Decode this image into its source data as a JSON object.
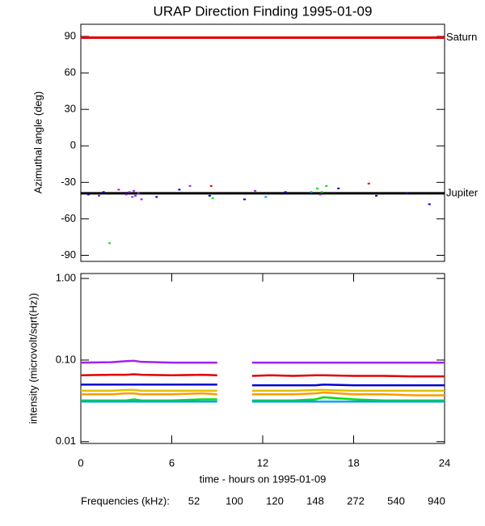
{
  "chart_data": [
    {
      "type": "scatter",
      "title": "URAP Direction Finding  1995-01-09",
      "ylabel": "Azimuthal angle (deg)",
      "xlim": [
        0,
        24
      ],
      "ylim": [
        -95,
        100
      ],
      "yticks": [
        -90,
        -60,
        -30,
        0,
        30,
        60,
        90
      ],
      "reference_lines": [
        {
          "label": "Saturn",
          "value": 89,
          "color": "#e00000"
        },
        {
          "label": "Jupiter",
          "value": -39,
          "color": "#000000"
        }
      ],
      "series": [
        {
          "color": "#a020f0",
          "x": [
            3.0,
            3.2,
            3.4,
            3.5,
            3.6,
            3.8,
            4.0,
            2.5,
            1.2,
            7.2,
            11.5,
            15.8
          ],
          "values": [
            -40,
            -38,
            -42,
            -37,
            -41,
            -39,
            -44,
            -36,
            -41,
            -33,
            -37,
            -40
          ]
        },
        {
          "color": "#0000d0",
          "x": [
            0.5,
            1.5,
            5.0,
            6.5,
            8.5,
            10.8,
            13.5,
            17.0,
            19.5,
            21.5,
            23.0
          ],
          "values": [
            -40,
            -38,
            -42,
            -36,
            -41,
            -44,
            -38,
            -35,
            -41,
            -39,
            -48
          ]
        },
        {
          "color": "#00e000",
          "x": [
            1.9,
            8.7,
            15.6,
            15.9,
            16.2
          ],
          "values": [
            -80,
            -43,
            -35,
            -38,
            -33
          ]
        },
        {
          "color": "#e00000",
          "x": [
            8.6,
            19.0
          ],
          "values": [
            -33,
            -31
          ]
        },
        {
          "color": "#00a0ff",
          "x": [
            15.2,
            12.2
          ],
          "values": [
            -38,
            -42
          ]
        }
      ]
    },
    {
      "type": "line",
      "ylabel": "intensity (microvolt/sqrt(Hz))",
      "xlabel": "time - hours on 1995-01-09",
      "log_scale": true,
      "xlim": [
        0,
        24
      ],
      "xticks": [
        0,
        6,
        12,
        18,
        24
      ],
      "ylim": [
        0.0095,
        1.15
      ],
      "yticks": [
        {
          "value": 0.01,
          "label": "0.01"
        },
        {
          "value": 0.1,
          "label": "0.10"
        },
        {
          "value": 1,
          "label": "1.00"
        }
      ],
      "legend_title": "Frequencies (kHz):",
      "x": [
        0,
        2,
        3,
        3.5,
        4,
        6,
        8,
        9,
        10,
        11.3,
        12.5,
        14,
        15.5,
        16,
        18,
        20,
        22,
        24
      ],
      "series": [
        {
          "name": "52",
          "color": "#e00000",
          "values": [
            0.065,
            0.066,
            0.066,
            0.067,
            0.066,
            0.065,
            0.066,
            0.065,
            null,
            0.064,
            0.065,
            0.064,
            0.065,
            0.065,
            0.064,
            0.064,
            0.063,
            0.063
          ]
        },
        {
          "name": "100",
          "color": "#ff9900",
          "values": [
            0.038,
            0.038,
            0.039,
            0.039,
            0.038,
            0.038,
            0.039,
            0.038,
            null,
            0.038,
            0.038,
            0.038,
            0.039,
            0.04,
            0.038,
            0.038,
            0.037,
            0.037
          ]
        },
        {
          "name": "120",
          "color": "#e0c000",
          "values": [
            0.042,
            0.042,
            0.043,
            0.043,
            0.042,
            0.042,
            0.042,
            0.042,
            null,
            0.042,
            0.042,
            0.042,
            0.043,
            0.043,
            0.042,
            0.042,
            0.042,
            0.042
          ]
        },
        {
          "name": "148",
          "color": "#00e000",
          "values": [
            0.032,
            0.032,
            0.032,
            0.033,
            0.032,
            0.032,
            0.033,
            0.033,
            null,
            0.032,
            0.032,
            0.032,
            0.033,
            0.035,
            0.033,
            0.032,
            0.032,
            0.032
          ]
        },
        {
          "name": "272",
          "color": "#00a0ff",
          "values": [
            0.031,
            0.031,
            0.031,
            0.031,
            0.031,
            0.031,
            0.031,
            0.031,
            null,
            0.031,
            0.031,
            0.031,
            0.031,
            0.031,
            0.031,
            0.031,
            0.031,
            0.031
          ]
        },
        {
          "name": "540",
          "color": "#0000d0",
          "values": [
            0.05,
            0.05,
            0.05,
            0.05,
            0.05,
            0.05,
            0.05,
            0.05,
            null,
            0.049,
            0.049,
            0.049,
            0.049,
            0.05,
            0.049,
            0.049,
            0.049,
            0.049
          ]
        },
        {
          "name": "940",
          "color": "#a020f0",
          "values": [
            0.093,
            0.094,
            0.097,
            0.098,
            0.095,
            0.093,
            0.093,
            0.093,
            null,
            0.093,
            0.093,
            0.093,
            0.093,
            0.093,
            0.093,
            0.093,
            0.093,
            0.093
          ]
        }
      ]
    }
  ]
}
